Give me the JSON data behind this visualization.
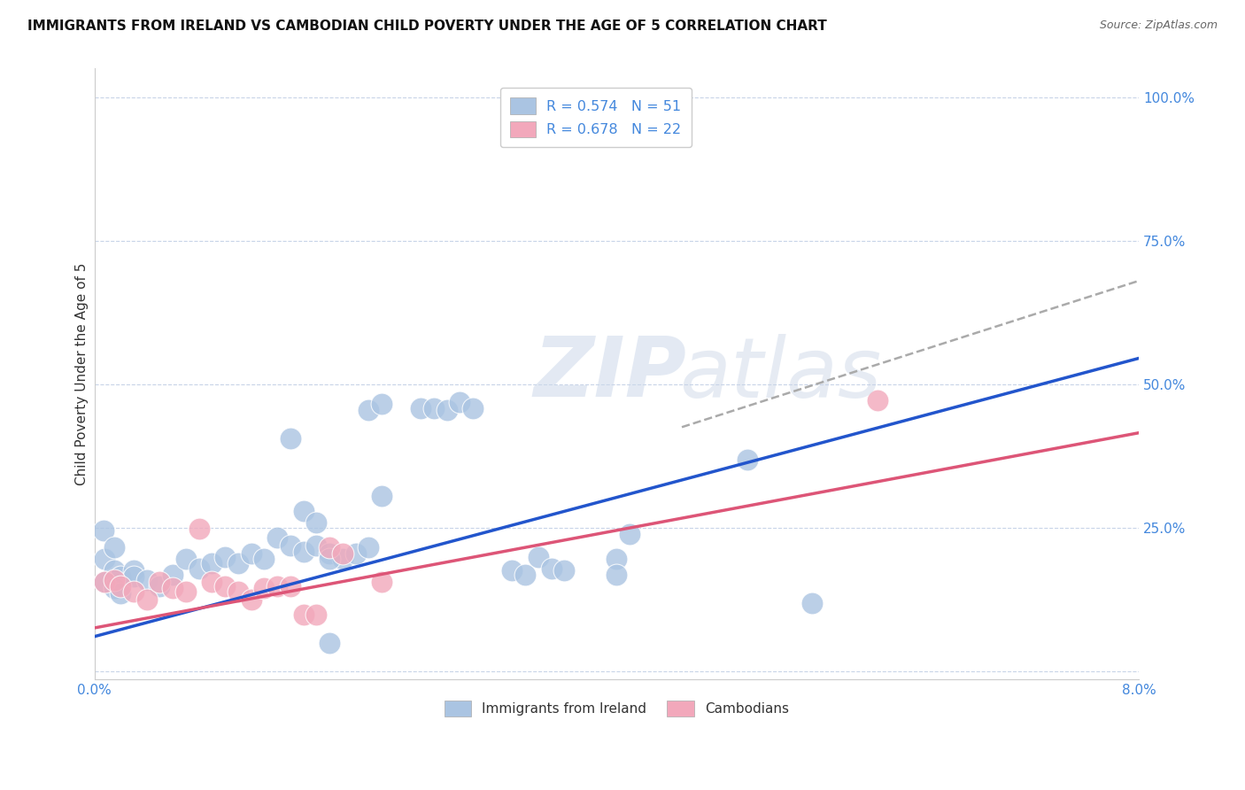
{
  "title": "IMMIGRANTS FROM IRELAND VS CAMBODIAN CHILD POVERTY UNDER THE AGE OF 5 CORRELATION CHART",
  "source": "Source: ZipAtlas.com",
  "ylabel": "Child Poverty Under the Age of 5",
  "watermark_zip": "ZIP",
  "watermark_atlas": "atlas",
  "legend1_label": "R = 0.574   N = 51",
  "legend2_label": "R = 0.678   N = 22",
  "legend_bottom1": "Immigrants from Ireland",
  "legend_bottom2": "Cambodians",
  "blue_color": "#aac4e2",
  "pink_color": "#f2a8bb",
  "blue_line_color": "#2255cc",
  "pink_line_color": "#dd5577",
  "dashed_line_color": "#aaaaaa",
  "background_color": "#ffffff",
  "grid_color": "#c8d4e8",
  "title_color": "#111111",
  "axis_tick_color": "#4488dd",
  "blue_scatter": [
    [
      0.0008,
      0.195
    ],
    [
      0.0015,
      0.175
    ],
    [
      0.002,
      0.165
    ],
    [
      0.003,
      0.175
    ],
    [
      0.0008,
      0.155
    ],
    [
      0.0015,
      0.145
    ],
    [
      0.002,
      0.135
    ],
    [
      0.003,
      0.165
    ],
    [
      0.004,
      0.158
    ],
    [
      0.005,
      0.148
    ],
    [
      0.006,
      0.168
    ],
    [
      0.007,
      0.195
    ],
    [
      0.008,
      0.178
    ],
    [
      0.009,
      0.188
    ],
    [
      0.01,
      0.198
    ],
    [
      0.011,
      0.188
    ],
    [
      0.012,
      0.205
    ],
    [
      0.013,
      0.195
    ],
    [
      0.014,
      0.232
    ],
    [
      0.015,
      0.218
    ],
    [
      0.016,
      0.208
    ],
    [
      0.017,
      0.218
    ],
    [
      0.018,
      0.205
    ],
    [
      0.019,
      0.195
    ],
    [
      0.02,
      0.205
    ],
    [
      0.021,
      0.215
    ],
    [
      0.016,
      0.278
    ],
    [
      0.017,
      0.258
    ],
    [
      0.018,
      0.195
    ],
    [
      0.022,
      0.305
    ],
    [
      0.021,
      0.455
    ],
    [
      0.022,
      0.465
    ],
    [
      0.025,
      0.458
    ],
    [
      0.026,
      0.458
    ],
    [
      0.027,
      0.455
    ],
    [
      0.028,
      0.468
    ],
    [
      0.029,
      0.458
    ],
    [
      0.032,
      0.175
    ],
    [
      0.033,
      0.168
    ],
    [
      0.034,
      0.198
    ],
    [
      0.035,
      0.178
    ],
    [
      0.036,
      0.175
    ],
    [
      0.04,
      0.195
    ],
    [
      0.04,
      0.168
    ],
    [
      0.041,
      0.238
    ],
    [
      0.018,
      0.048
    ],
    [
      0.0007,
      0.245
    ],
    [
      0.0015,
      0.215
    ],
    [
      0.05,
      0.368
    ],
    [
      0.055,
      0.118
    ],
    [
      0.015,
      0.405
    ]
  ],
  "pink_scatter": [
    [
      0.0008,
      0.155
    ],
    [
      0.0015,
      0.158
    ],
    [
      0.002,
      0.148
    ],
    [
      0.003,
      0.138
    ],
    [
      0.004,
      0.125
    ],
    [
      0.005,
      0.155
    ],
    [
      0.006,
      0.145
    ],
    [
      0.007,
      0.138
    ],
    [
      0.008,
      0.248
    ],
    [
      0.009,
      0.155
    ],
    [
      0.01,
      0.148
    ],
    [
      0.011,
      0.138
    ],
    [
      0.012,
      0.125
    ],
    [
      0.013,
      0.145
    ],
    [
      0.014,
      0.148
    ],
    [
      0.015,
      0.148
    ],
    [
      0.016,
      0.098
    ],
    [
      0.017,
      0.098
    ],
    [
      0.018,
      0.215
    ],
    [
      0.019,
      0.205
    ],
    [
      0.06,
      0.472
    ],
    [
      0.022,
      0.155
    ]
  ],
  "blue_trendline_x": [
    0.0,
    0.08
  ],
  "blue_trendline_y": [
    0.06,
    0.545
  ],
  "pink_trendline_x": [
    0.0,
    0.08
  ],
  "pink_trendline_y": [
    0.075,
    0.415
  ],
  "dashed_trendline_x": [
    0.045,
    0.08
  ],
  "dashed_trendline_y": [
    0.425,
    0.68
  ],
  "xlim": [
    0.0,
    0.08
  ],
  "ylim": [
    -0.015,
    1.05
  ],
  "yticks": [
    0.0,
    0.25,
    0.5,
    0.75,
    1.0
  ],
  "ytick_labels": [
    "",
    "25.0%",
    "50.0%",
    "75.0%",
    "100.0%"
  ],
  "xticks": [
    0.0,
    0.02,
    0.04,
    0.06,
    0.08
  ],
  "xtick_labels": [
    "0.0%",
    "",
    "",
    "",
    "8.0%"
  ]
}
